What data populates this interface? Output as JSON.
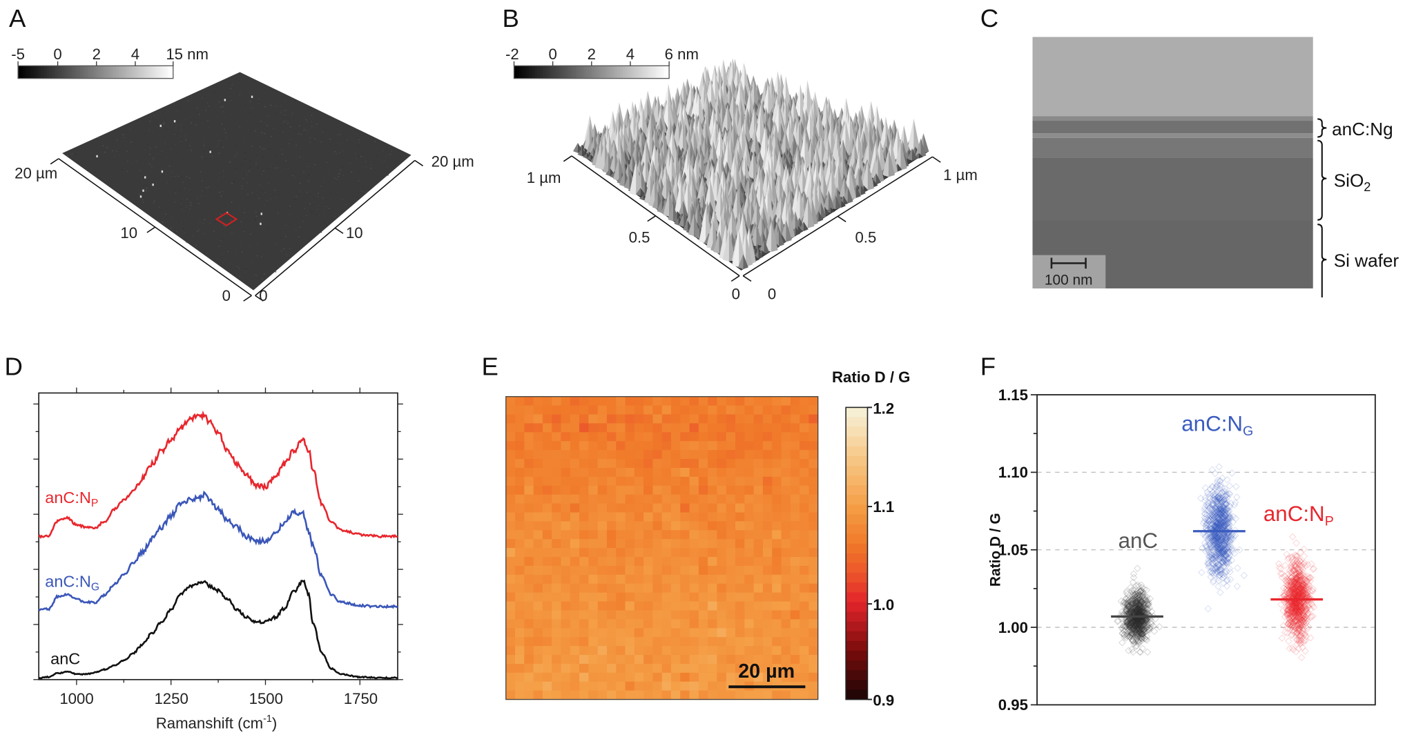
{
  "panels": {
    "A": {
      "label": "A",
      "colorbar": {
        "ticks": [
          "-5",
          "0",
          "2",
          "4",
          "15 nm"
        ],
        "colors": [
          "#000000",
          "#ffffff"
        ]
      },
      "axis_left_ticks": [
        "20 µm",
        "10",
        "0"
      ],
      "axis_right_ticks": [
        "0",
        "10",
        "20 µm"
      ],
      "marker_color": "#d42020"
    },
    "B": {
      "label": "B",
      "colorbar": {
        "ticks": [
          "-2",
          "0",
          "2",
          "4",
          "6 nm"
        ],
        "colors": [
          "#000000",
          "#ffffff"
        ]
      },
      "axis_left_ticks": [
        "1 µm",
        "0.5",
        "0"
      ],
      "axis_right_ticks": [
        "0",
        "0.5",
        "1 µm"
      ]
    },
    "C": {
      "label": "C",
      "scale_bar": "100 nm",
      "layers": [
        {
          "main": "anC:Ng",
          "sub": ""
        },
        {
          "main": "SiO",
          "sub": "2"
        },
        {
          "main": "Si wafer",
          "sub": ""
        }
      ]
    },
    "D": {
      "label": "D"
    },
    "E": {
      "label": "E"
    },
    "F": {
      "label": "F"
    }
  },
  "chart_data": [
    {
      "panel": "D",
      "type": "line",
      "xlabel": {
        "main": "Ramanshift (cm",
        "sup": "-1",
        "end": ")"
      },
      "ylabel": "",
      "xlim": [
        900,
        1850
      ],
      "ylim": [
        0,
        10
      ],
      "x_ticks": [
        "1000",
        "1250",
        "1500",
        "1750"
      ],
      "x": [
        900,
        925,
        950,
        975,
        1000,
        1025,
        1050,
        1075,
        1100,
        1125,
        1150,
        1175,
        1200,
        1225,
        1250,
        1275,
        1300,
        1325,
        1340,
        1350,
        1375,
        1400,
        1425,
        1450,
        1475,
        1500,
        1525,
        1550,
        1575,
        1600,
        1615,
        1625,
        1650,
        1675,
        1700,
        1750,
        1800,
        1850
      ],
      "series": [
        {
          "label_main": "anC",
          "label_sub": "",
          "color": "#111111",
          "values": [
            0.06,
            0.09,
            0.22,
            0.28,
            0.19,
            0.19,
            0.25,
            0.35,
            0.5,
            0.66,
            0.91,
            1.23,
            1.64,
            2.01,
            2.45,
            2.96,
            3.27,
            3.36,
            3.46,
            3.27,
            3.11,
            2.8,
            2.45,
            2.17,
            2.01,
            2.01,
            2.17,
            2.48,
            3.08,
            3.43,
            2.96,
            2.01,
            0.91,
            0.38,
            0.19,
            0.09,
            0.06,
            0.06
          ]
        },
        {
          "label_main": "anC:N",
          "label_sub": "G",
          "color": "#3a56b8",
          "values": [
            2.45,
            2.45,
            2.89,
            2.96,
            2.8,
            2.7,
            2.7,
            2.96,
            3.33,
            3.65,
            4.06,
            4.47,
            4.91,
            5.31,
            5.72,
            6.1,
            6.26,
            6.35,
            6.48,
            6.26,
            5.94,
            5.53,
            5.31,
            5.0,
            4.84,
            4.84,
            5.09,
            5.47,
            5.85,
            5.79,
            5.16,
            4.69,
            3.58,
            2.96,
            2.7,
            2.58,
            2.55,
            2.55
          ]
        },
        {
          "label_main": "anC:N",
          "label_sub": "P",
          "color": "#e8262d",
          "values": [
            5.0,
            5.0,
            5.53,
            5.63,
            5.41,
            5.31,
            5.31,
            5.53,
            5.94,
            6.26,
            6.57,
            7.04,
            7.52,
            7.99,
            8.36,
            8.77,
            9.09,
            9.25,
            9.18,
            8.99,
            8.62,
            7.99,
            7.52,
            7.11,
            6.79,
            6.73,
            7.04,
            7.52,
            7.99,
            8.36,
            7.99,
            7.36,
            6.1,
            5.47,
            5.22,
            5.06,
            5.0,
            5.0
          ]
        }
      ]
    },
    {
      "panel": "E",
      "type": "heatmap",
      "colorbar_title": "Ratio D / G",
      "colorbar_ticks": [
        "1.2",
        "1.1",
        "1.0",
        "0.9"
      ],
      "colorbar_range": [
        0.9,
        1.2
      ],
      "colormap": [
        [
          0.9,
          "#1a0505"
        ],
        [
          0.95,
          "#7a0c0c"
        ],
        [
          1.0,
          "#e3242b"
        ],
        [
          1.03,
          "#ec562a"
        ],
        [
          1.06,
          "#f07a2a"
        ],
        [
          1.1,
          "#f5a048"
        ],
        [
          1.15,
          "#f7c98a"
        ],
        [
          1.2,
          "#f6f3dc"
        ]
      ],
      "grid_size": [
        34,
        34
      ],
      "row_means_top_to_bottom": [
        1.063,
        1.062,
        1.06,
        1.061,
        1.063,
        1.064,
        1.066,
        1.067,
        1.068,
        1.07,
        1.071,
        1.072,
        1.073,
        1.074,
        1.076,
        1.077,
        1.078,
        1.079,
        1.08,
        1.081,
        1.082,
        1.083,
        1.084,
        1.085,
        1.086,
        1.087,
        1.088,
        1.089,
        1.09,
        1.091,
        1.092,
        1.092,
        1.093,
        1.093
      ],
      "cell_spread": 0.008,
      "scale_bar": "20 µm"
    },
    {
      "panel": "F",
      "type": "scatter",
      "ylabel": "Ratio D / G",
      "ylim": [
        0.95,
        1.15
      ],
      "y_ticks": [
        "1.15",
        "1.10",
        "1.05",
        "1.00",
        "0.95"
      ],
      "grid": "dashed at 1.00, 1.05, 1.10",
      "categories": [
        {
          "label_main": "anC",
          "label_sub": "",
          "color": "#2a2a2a",
          "label_color": "#555555",
          "mean": 1.007,
          "min": 0.984,
          "max": 1.038,
          "sd": 0.008
        },
        {
          "label_main": "anC:N",
          "label_sub": "G",
          "color": "#3a5bbf",
          "label_color": "#3a5bbf",
          "mean": 1.062,
          "min": 1.005,
          "max": 1.115,
          "sd": 0.015
        },
        {
          "label_main": "anC:N",
          "label_sub": "P",
          "color": "#e8262d",
          "label_color": "#e8262d",
          "mean": 1.018,
          "min": 0.98,
          "max": 1.065,
          "sd": 0.013
        }
      ]
    }
  ]
}
